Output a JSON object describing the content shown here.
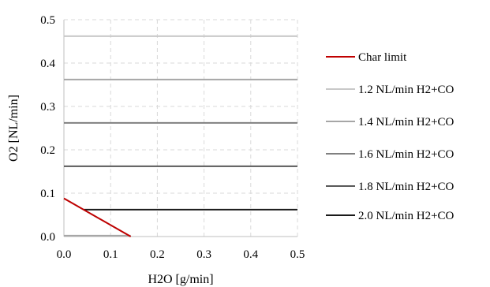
{
  "chart_data": {
    "type": "line",
    "title": "",
    "xlabel": "H2O [g/min]",
    "ylabel": "O2 [NL/min]",
    "xlim": [
      0,
      0.5
    ],
    "ylim": [
      0,
      0.5
    ],
    "xticks": [
      0,
      0.1,
      0.2,
      0.3,
      0.4,
      0.5
    ],
    "yticks": [
      0,
      0.1,
      0.2,
      0.3,
      0.4,
      0.5
    ],
    "xtick_labels": [
      "0.0",
      "0.1",
      "0.2",
      "0.3",
      "0.4",
      "0.5"
    ],
    "ytick_labels": [
      "0.0",
      "0.1",
      "0.2",
      "0.3",
      "0.4",
      "0.5"
    ],
    "grid": true,
    "legend_position": "right",
    "series": [
      {
        "name": "Char limit",
        "color": "#c00000",
        "points": [
          [
            0,
            0.088
          ],
          [
            0.143,
            0
          ]
        ]
      },
      {
        "name": "1.2 NL/min H2+CO",
        "color": "#c8c8c8",
        "points": [
          [
            0,
            0.462
          ],
          [
            0.5,
            0.462
          ]
        ]
      },
      {
        "name": "1.4 NL/min H2+CO",
        "color": "#a6a6a6",
        "points": [
          [
            0,
            0.362
          ],
          [
            0.5,
            0.362
          ]
        ]
      },
      {
        "name": "1.6 NL/min H2+CO",
        "color": "#808080",
        "points": [
          [
            0,
            0.262
          ],
          [
            0.5,
            0.262
          ]
        ]
      },
      {
        "name": "1.8 NL/min H2+CO",
        "color": "#595959",
        "points": [
          [
            0,
            0.162
          ],
          [
            0.5,
            0.162
          ]
        ]
      },
      {
        "name": "2.0 NL/min H2+CO",
        "color": "#1a1a1a",
        "points": [
          [
            0.043,
            0.062
          ],
          [
            0.5,
            0.062
          ]
        ]
      }
    ],
    "extra_lines": [
      {
        "color": "#bfbfbf",
        "points": [
          [
            0,
            0.088
          ],
          [
            0.143,
            0
          ]
        ]
      },
      {
        "color": "#a6a6a6",
        "points": [
          [
            0,
            0.002
          ],
          [
            0.143,
            0.002
          ]
        ]
      }
    ]
  }
}
